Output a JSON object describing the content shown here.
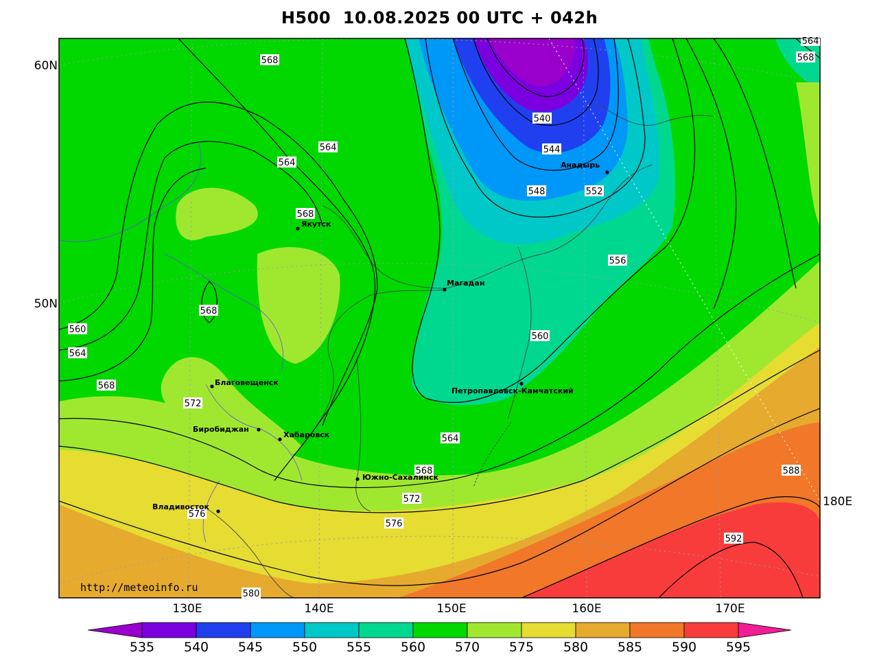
{
  "title": "H500  10.08.2025 00 UTC + 042h",
  "credit": "http://meteoinfo.ru",
  "lat_labels": [
    "60N",
    "50N"
  ],
  "lon_labels": [
    "130E",
    "140E",
    "150E",
    "160E",
    "170E",
    "180E"
  ],
  "contour_labels": [
    "568",
    "564",
    "564",
    "568",
    "568",
    "560",
    "564",
    "568",
    "572",
    "576",
    "540",
    "544",
    "548",
    "552",
    "556",
    "560",
    "564",
    "568",
    "572",
    "576",
    "580",
    "588",
    "592",
    "564",
    "568"
  ],
  "cities": [
    {
      "name": "Якутск"
    },
    {
      "name": "Магадан"
    },
    {
      "name": "Анадырь"
    },
    {
      "name": "Благовещенск"
    },
    {
      "name": "Биробиджан"
    },
    {
      "name": "Хабаровск"
    },
    {
      "name": "Южно-Сахалинск"
    },
    {
      "name": "Петропавловск-Камчатский"
    },
    {
      "name": "Владивосток"
    }
  ],
  "legend": {
    "values": [
      "535",
      "540",
      "545",
      "550",
      "555",
      "560",
      "570",
      "575",
      "580",
      "585",
      "590",
      "595"
    ],
    "colors": [
      "#9a00cc",
      "#7a00e0",
      "#2040f0",
      "#0098f8",
      "#00c8c8",
      "#00d890",
      "#00d800",
      "#a0e830",
      "#e6dc32",
      "#e6aa2f",
      "#f07828",
      "#f83c3c",
      "#f01e96"
    ]
  }
}
